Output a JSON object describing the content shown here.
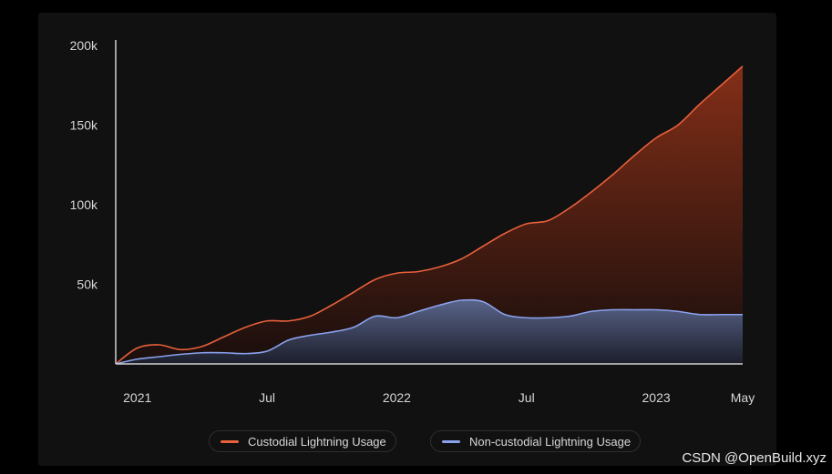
{
  "chart_data": {
    "type": "area",
    "x": [
      "2020-12-01",
      "2021-01-01",
      "2021-02-01",
      "2021-03-01",
      "2021-04-01",
      "2021-05-01",
      "2021-06-01",
      "2021-07-01",
      "2021-08-01",
      "2021-09-01",
      "2021-10-01",
      "2021-11-01",
      "2021-12-01",
      "2022-01-01",
      "2022-02-01",
      "2022-03-01",
      "2022-04-01",
      "2022-05-01",
      "2022-06-01",
      "2022-07-01",
      "2022-08-01",
      "2022-09-01",
      "2022-10-01",
      "2022-11-01",
      "2022-12-01",
      "2023-01-01",
      "2023-02-01",
      "2023-03-01",
      "2023-04-01",
      "2023-05-01"
    ],
    "series": [
      {
        "name": "Custodial Lightning Usage",
        "color": "#e8603c",
        "values": [
          0,
          10000,
          12000,
          9000,
          11000,
          17000,
          23000,
          27000,
          27000,
          30000,
          37000,
          45000,
          53000,
          57000,
          58000,
          61000,
          66000,
          74000,
          82000,
          88000,
          90000,
          98000,
          108000,
          119000,
          131000,
          142000,
          150000,
          163000,
          175000,
          187000
        ]
      },
      {
        "name": "Non-custodial Lightning Usage",
        "color": "#8aa2ee",
        "values": [
          0,
          3000,
          4500,
          6000,
          7000,
          7000,
          6500,
          8000,
          15000,
          18000,
          20000,
          23000,
          30000,
          29000,
          33000,
          37000,
          40000,
          39000,
          31000,
          29000,
          29000,
          30000,
          33000,
          34000,
          34000,
          34000,
          33000,
          31000,
          31000,
          31000
        ]
      }
    ],
    "x_ticks": [
      "2021",
      "Jul",
      "2022",
      "Jul",
      "2023",
      "May"
    ],
    "y_ticks": [
      "200k",
      "150k",
      "100k",
      "50k"
    ],
    "ylim": [
      0,
      200000
    ],
    "legend_position": "bottom-center",
    "grid": false
  },
  "watermark": "CSDN @OpenBuild.xyz"
}
